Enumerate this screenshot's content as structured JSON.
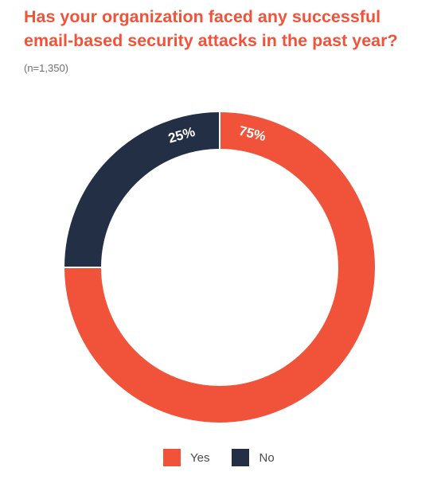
{
  "header": {
    "title": "Has your organization faced any successful email-based security attacks in the past year?",
    "subtitle": "(n=1,350)"
  },
  "colors": {
    "yes": "#f0533a",
    "no": "#232f45",
    "title": "#f0533a"
  },
  "chart_data": {
    "type": "pie",
    "style": "donut",
    "title": "Has your organization faced any successful email-based security attacks in the past year?",
    "subtitle": "(n=1,350)",
    "categories": [
      "Yes",
      "No"
    ],
    "values": [
      75,
      25
    ],
    "labels": [
      "75%",
      "25%"
    ],
    "colors": [
      "#f0533a",
      "#232f45"
    ],
    "legend": {
      "position": "bottom",
      "entries": [
        "Yes",
        "No"
      ]
    }
  }
}
